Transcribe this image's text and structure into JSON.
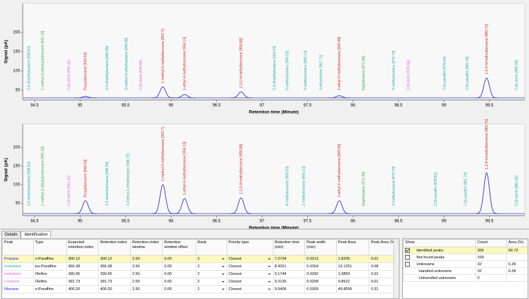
{
  "chart_data": [
    {
      "type": "line",
      "xlabel": "Retention time (Minute)",
      "ylabel": "Signal (pA)",
      "xlim": [
        94.37,
        99.89
      ],
      "xticks": [
        94.5,
        95,
        95.5,
        96,
        96.5,
        97,
        97.5,
        98,
        98.5,
        99,
        99.5
      ],
      "ylim": [
        25,
        275
      ],
      "yticks": [
        50,
        100,
        150,
        200
      ],
      "color": "#3030c8",
      "peaks": {
        "x": [
          95.06,
          95.91,
          96.15,
          96.77,
          97.85,
          99.47
        ],
        "values": [
          34,
          59,
          39,
          46,
          36,
          82
        ]
      },
      "annotations": [
        {
          "text": "2,6-dimethyloctane [938.81]",
          "x": 94.44,
          "color": "#20a8a8"
        },
        {
          "text": "1-methyl-2-ethylcyclohexane [940.19]",
          "x": 94.59,
          "color": "#30b030"
        },
        {
          "text": "C10-olefin [942.10]",
          "x": 94.88,
          "color": "#e060e0"
        },
        {
          "text": "Propylbenzene [944.54]",
          "x": 95.06,
          "color": "#d82020"
        },
        {
          "text": "3,3-dimethyloctane [946.59]",
          "x": 95.3,
          "color": "#20a8a8"
        },
        {
          "text": "3-methyl-5-ethylheptane [948.59]",
          "x": 95.51,
          "color": "#20a8a8"
        },
        {
          "text": "C10-olefin [949.80]",
          "x": 95.67,
          "color": "#e060e0"
        },
        {
          "text": "1-methyl-3-methylbenzene [952.7]",
          "x": 95.91,
          "color": "#d82020"
        },
        {
          "text": "1-ethyl-4-methylbenzene [954.13]",
          "x": 96.15,
          "color": "#d82020"
        },
        {
          "text": "1,3,5-trimethylbenzene [958.88]",
          "x": 96.77,
          "color": "#d82020"
        },
        {
          "text": "2,3-dimethyloctane [963.23]",
          "x": 97.14,
          "color": "#20a8a8"
        },
        {
          "text": "5-methylnonane [964.52]",
          "x": 97.28,
          "color": "#20a8a8"
        },
        {
          "text": "2-methylnonane [966.13]",
          "x": 97.48,
          "color": "#20a8a8"
        },
        {
          "text": "3-ethyloctane [967.71]",
          "x": 97.65,
          "color": "#20a8a8"
        },
        {
          "text": "1-ethyl-2-methylbenzene [969.44]",
          "x": 97.85,
          "color": "#d82020"
        },
        {
          "text": "Naphthalene [971.99]",
          "x": 98.12,
          "color": "#30b030"
        },
        {
          "text": "3-methylnonane [974.74]",
          "x": 98.45,
          "color": "#20a8a8"
        },
        {
          "text": "C10-olefin [976.56]",
          "x": 98.61,
          "color": "#e060e0"
        },
        {
          "text": "C10-paraffin [979.60]",
          "x": 99.01,
          "color": "#20a8a8"
        },
        {
          "text": "C10-paraffin [981.78]",
          "x": 99.26,
          "color": "#20a8a8"
        },
        {
          "text": "1,2,4-trimethylbenzene [983.71]",
          "x": 99.47,
          "color": "#d82020"
        },
        {
          "text": "C10-olefin [985.58]",
          "x": 99.8,
          "color": "#20a8a8"
        }
      ]
    },
    {
      "type": "line",
      "xlabel": "Retention time (Minute)",
      "ylabel": "Signal (pA)",
      "xlim": [
        94.37,
        99.89
      ],
      "xticks": [
        94.5,
        95,
        95.5,
        96,
        96.5,
        97,
        97.5,
        98,
        98.5,
        99,
        99.5
      ],
      "ylim": [
        17,
        263
      ],
      "yticks": [
        50,
        100,
        150,
        200
      ],
      "color": "#3030c8",
      "peaks": {
        "x": [
          95.06,
          95.91,
          96.15,
          96.77,
          97.85,
          99.47
        ],
        "values": [
          57,
          100,
          63,
          65,
          57,
          132
        ]
      },
      "annotations": [
        {
          "text": "2,6-dimethyloctane [938.81]",
          "x": 94.44,
          "color": "#20a8a8"
        },
        {
          "text": "1-methyl-2-ethylcyclohexane [940.19]",
          "x": 94.59,
          "color": "#30b030"
        },
        {
          "text": "C10-olefin [942.10]",
          "x": 94.88,
          "color": "#e060e0"
        },
        {
          "text": "Propylbenzene [944.54]",
          "x": 95.06,
          "color": "#d82020"
        },
        {
          "text": "3,3-dimethyloctane [946.59]",
          "x": 95.3,
          "color": "#20a8a8"
        },
        {
          "text": "3-methyl-5-ethylheptane [948.72]",
          "x": 95.53,
          "color": "#20a8a8"
        },
        {
          "text": "1-methyl-3-methylbenzene [952.7]",
          "x": 95.91,
          "color": "#d82020"
        },
        {
          "text": "1-ethyl-4-methylbenzene [954.13]",
          "x": 96.15,
          "color": "#d82020"
        },
        {
          "text": "1,3,5-trimethylbenzene [958.88]",
          "x": 96.77,
          "color": "#d82020"
        },
        {
          "text": "4-methylnonane [964.53]",
          "x": 97.28,
          "color": "#20a8a8"
        },
        {
          "text": "2-methylnonane [966.13]",
          "x": 97.46,
          "color": "#20a8a8"
        },
        {
          "text": "1-ethyl-2-methylbenzene [969.50]",
          "x": 97.85,
          "color": "#d82020"
        },
        {
          "text": "Naphthalene [971.99]",
          "x": 98.12,
          "color": "#30b030"
        },
        {
          "text": "3-methylnonane [974.79]",
          "x": 98.45,
          "color": "#20a8a8"
        },
        {
          "text": "C10-paraffin [978.81]",
          "x": 98.91,
          "color": "#20a8a8"
        },
        {
          "text": "C10-paraffin [981.76]",
          "x": 99.24,
          "color": "#20a8a8"
        },
        {
          "text": "1,2,4-trimethylbenzene [983.71]",
          "x": 99.47,
          "color": "#d82020"
        },
        {
          "text": "C10-olefin [985.58]",
          "x": 99.8,
          "color": "#20a8a8"
        }
      ]
    }
  ],
  "tabs": [
    "Details",
    "Identification"
  ],
  "table": {
    "columns": [
      "Peak",
      "Type",
      "Expected retention index",
      "Retention index",
      "Retention index window",
      "Retention window offset",
      "Rank",
      "Priority type",
      "Retention time (min)",
      "Peak width (min)",
      "Peak Area",
      "Peak Area (%)"
    ],
    "selected_row": 0,
    "peak_colors": [
      "#2a2ae0",
      "#20a8a8",
      "#e060e0",
      "#e060e0",
      "#2a2ae0"
    ],
    "rows": [
      [
        "Propane",
        "n-Paraffins",
        "300.12",
        "300.12",
        "2.50",
        "0.00",
        "2",
        "Closest",
        "7.2704",
        "0.0213",
        "1.8205",
        "0.01"
      ],
      [
        "Isobutane",
        "iso-Paraffins",
        "366.38",
        "366.38",
        "2.50",
        "0.00",
        "2",
        "Closest",
        "8.4261",
        "0.0264",
        "13.1251",
        "0.08"
      ],
      [
        "Isobutene",
        "Olefins",
        "390.65",
        "390.65",
        "2.50",
        "0.00",
        "2",
        "Closest",
        "9.1744",
        "0.0292",
        "1.0850",
        "0.01"
      ],
      [
        "1-butene",
        "Olefins",
        "391.73",
        "391.73",
        "2.50",
        "0.00",
        "2",
        "Closest",
        "9.2136",
        "0.0258",
        "0.8522",
        "0.01"
      ],
      [
        "Nbutane",
        "n-Paraffins",
        "400.20",
        "400.20",
        "2.50",
        "0.00",
        "2",
        "Closest",
        "9.5406",
        "0.0309",
        "49.8559",
        "0.31"
      ]
    ]
  },
  "summary": {
    "columns": [
      "Show",
      "Count",
      "Area (%)"
    ],
    "rows": [
      {
        "label": "Identified peaks",
        "checkbox": true,
        "checked": true,
        "count": "266",
        "area": "99.72"
      },
      {
        "label": "Not found peaks",
        "checkbox": true,
        "checked": false,
        "count": "169",
        "area": null
      },
      {
        "label": "Unknowns",
        "checkbox": true,
        "checked": false,
        "count": "32",
        "area": "0.28"
      },
      {
        "label": "Handled unknowns",
        "checkbox": false,
        "checked": false,
        "count": "32",
        "area": "0.28"
      },
      {
        "label": "Unhandled unknowns",
        "checkbox": false,
        "checked": false,
        "count": "0",
        "area": null
      }
    ]
  }
}
